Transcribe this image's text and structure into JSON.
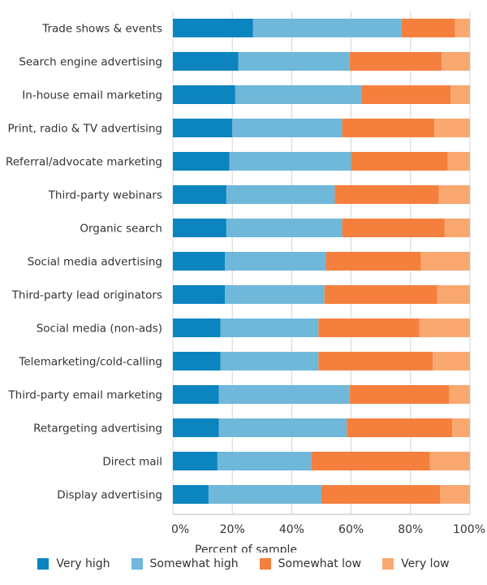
{
  "chart_data": {
    "type": "bar",
    "orientation": "horizontal",
    "stacked": true,
    "xlabel": "Percent of sample",
    "xlim": [
      0,
      100
    ],
    "x_ticks": [
      "0%",
      "20%",
      "40%",
      "60%",
      "80%",
      "100%"
    ],
    "grid": true,
    "legend_position": "bottom",
    "categories": [
      "Trade shows & events",
      "Search engine advertising",
      "In-house email marketing",
      "Print, radio & TV advertising",
      "Referral/advocate marketing",
      "Third-party webinars",
      "Organic search",
      "Social media advertising",
      "Third-party lead originators",
      "Social media (non-ads)",
      "Telemarketing/cold-calling",
      "Third-party email marketing",
      "Retargeting advertising",
      "Direct mail",
      "Display advertising"
    ],
    "series": [
      {
        "name": "Very high",
        "color": "#0b84c0",
        "values": [
          27,
          22,
          21,
          20,
          19,
          18,
          18,
          17.5,
          17.5,
          16,
          16,
          15.5,
          15.5,
          15,
          12
        ]
      },
      {
        "name": "Somewhat high",
        "color": "#6fb8da",
        "values": [
          50,
          37.5,
          42.5,
          37,
          41,
          36.5,
          39,
          34,
          33.5,
          33,
          33,
          44,
          43,
          31.5,
          38
        ]
      },
      {
        "name": "Somewhat low",
        "color": "#f5803e",
        "values": [
          18,
          31,
          30,
          31,
          32.5,
          35,
          34.5,
          32,
          38,
          34,
          38.5,
          33.5,
          35.5,
          40,
          40
        ]
      },
      {
        "name": "Very low",
        "color": "#f9a870",
        "values": [
          5,
          9.5,
          6.5,
          12,
          7.5,
          10.5,
          8.5,
          16.5,
          11,
          17,
          12.5,
          7,
          6,
          13.5,
          10
        ]
      }
    ]
  }
}
